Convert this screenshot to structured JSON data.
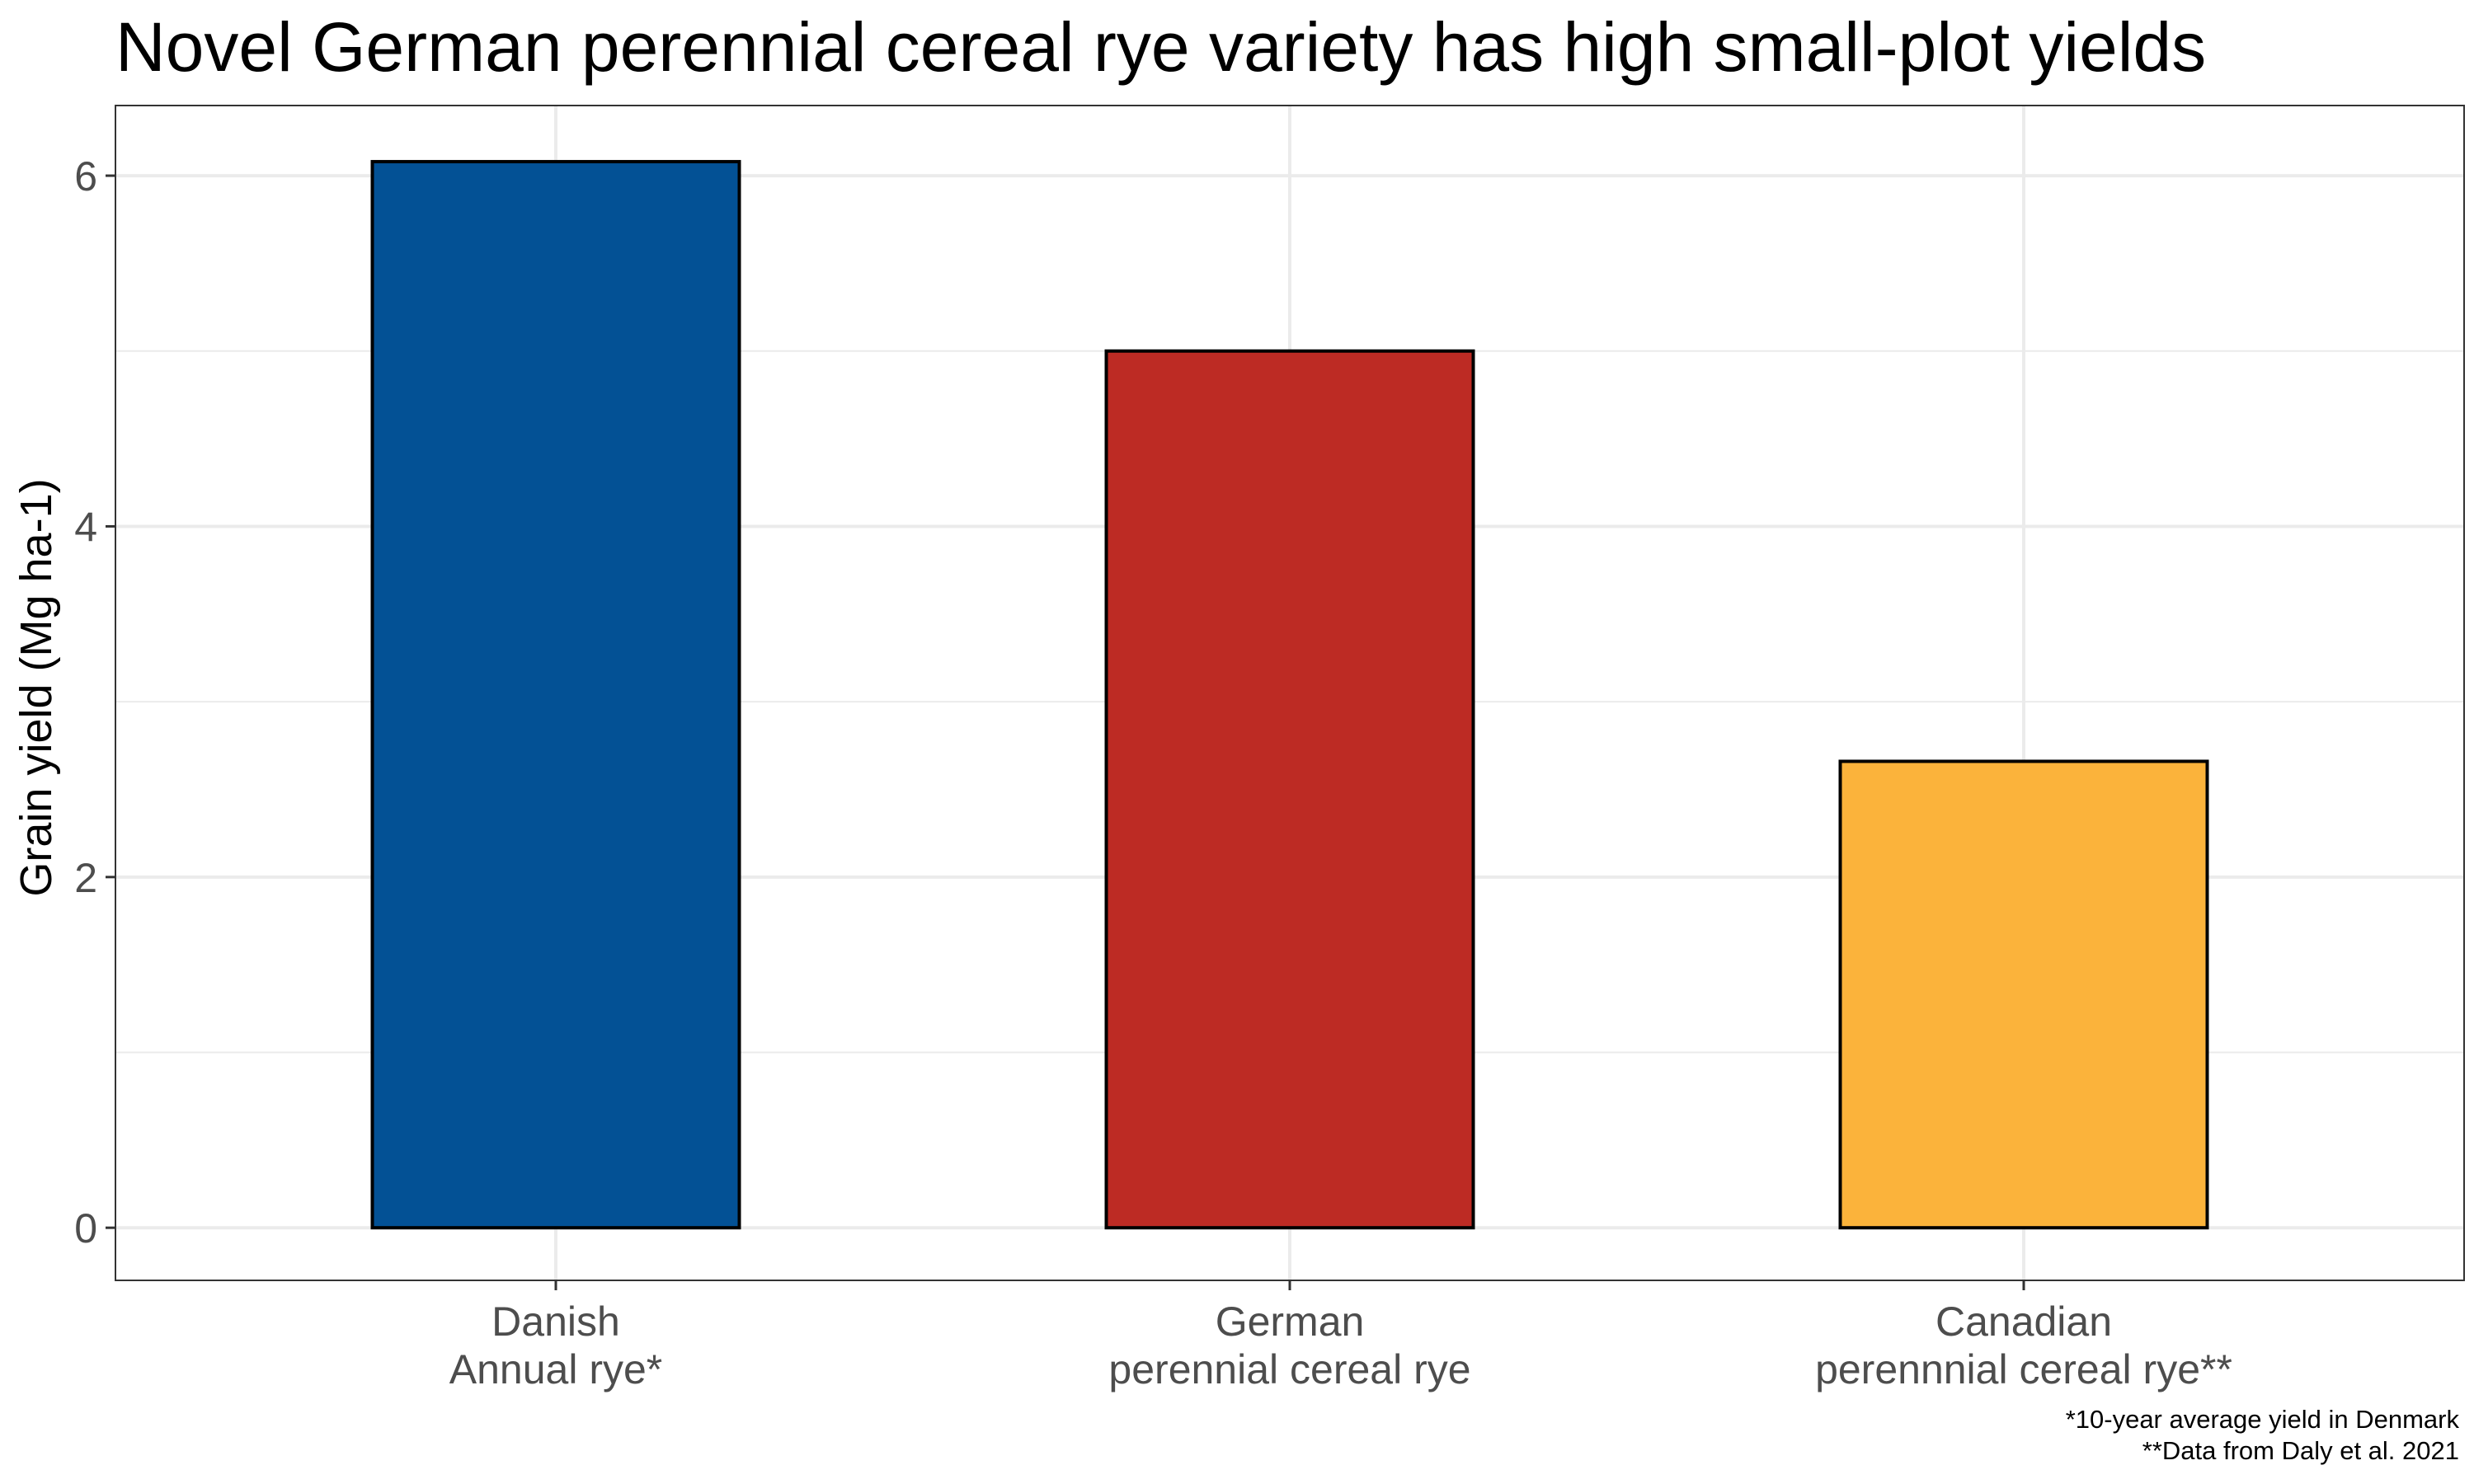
{
  "chart_data": {
    "type": "bar",
    "title": "Novel German perennial cereal rye variety has high small-plot yields",
    "xlabel": "",
    "ylabel": "Grain yield (Mg ha-1)",
    "categories": [
      [
        "Danish",
        "Annual rye*"
      ],
      [
        "German",
        "perennial cereal rye"
      ],
      [
        "Canadian",
        "perennnial cereal rye**"
      ]
    ],
    "values": [
      6.08,
      5.0,
      2.66
    ],
    "colors": [
      "#035195",
      "#bd2b24",
      "#fbb33b"
    ],
    "bar_outline_color": "#000000",
    "yticks": [
      0,
      2,
      4,
      6
    ],
    "ylim": [
      -0.3,
      6.4
    ],
    "grid": true,
    "legend": "none",
    "caption": [
      "*10-year average yield in Denmark",
      "**Data from Daly et al. 2021"
    ]
  }
}
